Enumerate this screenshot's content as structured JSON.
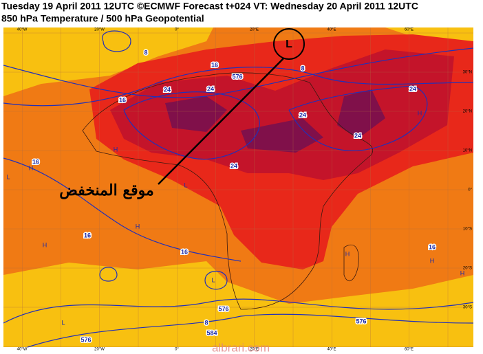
{
  "header": {
    "line1": "Tuesday 19 April 2011 12UTC ©ECMWF Forecast t+024 VT: Wednesday 20 April 2011 12UTC",
    "line2": "850 hPa Temperature / 500 hPa Geopotential"
  },
  "map": {
    "lon_labels": [
      "40°W",
      "20°W",
      "0°",
      "20°E",
      "40°E",
      "60°E"
    ],
    "lat_labels": [
      "30°N",
      "20°N",
      "10°N",
      "0°",
      "10°S",
      "20°S",
      "30°S"
    ],
    "contour_labels": [
      "8",
      "16",
      "16",
      "24",
      "24",
      "24",
      "24",
      "24",
      "24",
      "16",
      "16",
      "16",
      "16",
      "8",
      "576",
      "576",
      "584",
      "576",
      "576",
      "8"
    ],
    "centers": [
      "L",
      "L",
      "L",
      "L",
      "L",
      "H",
      "H",
      "H",
      "H",
      "H",
      "H",
      "H",
      "H"
    ],
    "annotation": "موقع المنخفض",
    "watermark": "albrari.com"
  }
}
